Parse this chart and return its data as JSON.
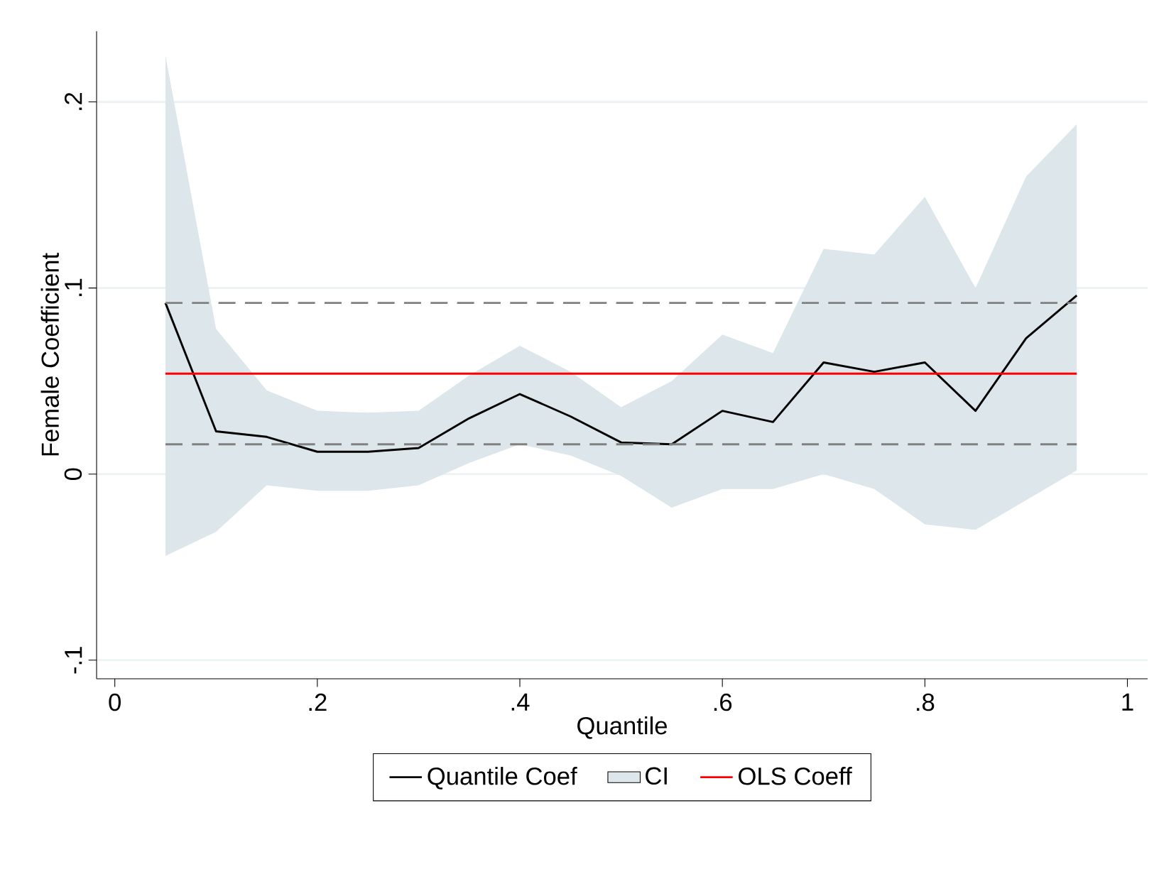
{
  "chart_data": {
    "type": "line",
    "xlabel": "Quantile",
    "ylabel": "Female Coefficient",
    "xlim": [
      -0.018,
      1.02
    ],
    "ylim": [
      -0.11,
      0.238
    ],
    "xticks": [
      0,
      {
        "value": 0.2,
        "label": ".2"
      },
      {
        "value": 0.4,
        "label": ".4"
      },
      {
        "value": 0.6,
        "label": ".6"
      },
      {
        "value": 0.8,
        "label": ".8"
      },
      1
    ],
    "yticks": [
      {
        "value": -0.1,
        "label": "-.1"
      },
      0,
      {
        "value": 0.1,
        "label": ".1"
      },
      {
        "value": 0.2,
        "label": ".2"
      }
    ],
    "grid": "y",
    "legend": "bottom",
    "marker": "none",
    "x": [
      0.05,
      0.1,
      0.15,
      0.2,
      0.25,
      0.3,
      0.35,
      0.4,
      0.45,
      0.5,
      0.55,
      0.6,
      0.65,
      0.7,
      0.75,
      0.8,
      0.85,
      0.9,
      0.95
    ],
    "series": [
      {
        "name": "Quantile Coef",
        "color": "#000000",
        "values": [
          0.092,
          0.023,
          0.02,
          0.012,
          0.012,
          0.014,
          0.03,
          0.043,
          0.031,
          0.017,
          0.016,
          0.034,
          0.028,
          0.06,
          0.055,
          0.06,
          0.034,
          0.073,
          0.096
        ]
      },
      {
        "name": "CI",
        "type": "area",
        "color": "#dce6eb",
        "values": [
          null,
          null,
          null,
          null,
          null,
          null,
          null,
          null,
          null,
          null,
          null,
          null,
          null,
          null,
          null,
          null,
          null,
          null,
          null
        ],
        "upper": [
          0.225,
          0.078,
          0.045,
          0.034,
          0.033,
          0.034,
          0.053,
          0.069,
          0.055,
          0.036,
          0.05,
          0.075,
          0.065,
          0.121,
          0.118,
          0.149,
          0.1,
          0.16,
          0.188
        ],
        "lower": [
          -0.044,
          -0.031,
          -0.006,
          -0.009,
          -0.009,
          -0.006,
          0.006,
          0.016,
          0.01,
          -0.001,
          -0.018,
          -0.008,
          -0.008,
          0.0,
          -0.008,
          -0.027,
          -0.03,
          -0.014,
          0.002
        ]
      },
      {
        "name": "OLS Coeff",
        "color": "#ff0000",
        "values": [
          0.054,
          0.054,
          0.054,
          0.054,
          0.054,
          0.054,
          0.054,
          0.054,
          0.054,
          0.054,
          0.054,
          0.054,
          0.054,
          0.054,
          0.054,
          0.054,
          0.054,
          0.054,
          0.054
        ]
      },
      {
        "color": "#808080",
        "line_style": "dashed",
        "values": [
          0.092,
          0.092,
          0.092,
          0.092,
          0.092,
          0.092,
          0.092,
          0.092,
          0.092,
          0.092,
          0.092,
          0.092,
          0.092,
          0.092,
          0.092,
          0.092,
          0.092,
          0.092,
          0.092
        ]
      },
      {
        "color": "#808080",
        "line_style": "dashed",
        "values": [
          0.016,
          0.016,
          0.016,
          0.016,
          0.016,
          0.016,
          0.016,
          0.016,
          0.016,
          0.016,
          0.016,
          0.016,
          0.016,
          0.016,
          0.016,
          0.016,
          0.016,
          0.016,
          0.016
        ]
      }
    ]
  }
}
